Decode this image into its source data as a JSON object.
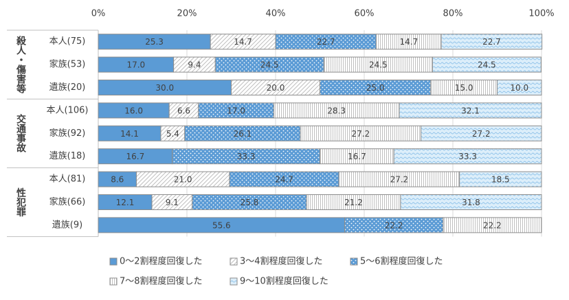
{
  "chart_data": {
    "type": "stacked-bar-horizontal",
    "groups": [
      {
        "name": "殺人・傷害等",
        "categories": [
          "本人(75)",
          "家族(53)",
          "遺族(20)"
        ]
      },
      {
        "name": "交通事故",
        "categories": [
          "本人(106)",
          "家族(92)",
          "遺族(18)"
        ]
      },
      {
        "name": "性犯罪",
        "categories": [
          "本人(81)",
          "家族(66)",
          "遺族(9)"
        ]
      }
    ],
    "xlim": [
      0,
      100
    ],
    "xticks": [
      {
        "value": 0,
        "label": "0%"
      },
      {
        "value": 20,
        "label": "20%"
      },
      {
        "value": 40,
        "label": "40%"
      },
      {
        "value": 60,
        "label": "60%"
      },
      {
        "value": 80,
        "label": "80%"
      },
      {
        "value": 100,
        "label": "100%"
      }
    ],
    "series": [
      {
        "name": "0～2割程度回復した",
        "color": "#5b9bd5",
        "pattern": "solid",
        "values": [
          25.3,
          17.0,
          30.0,
          16.0,
          14.1,
          16.7,
          8.6,
          12.1,
          55.6
        ],
        "value_labels": [
          "25.3",
          "17.0",
          "30.0",
          "16.0",
          "14.1",
          "16.7",
          "8.6",
          "12.1",
          "55.6"
        ]
      },
      {
        "name": "3～4割程度回復した",
        "color": "#bfbfbf",
        "pattern": "diagonal",
        "values": [
          14.7,
          9.4,
          20.0,
          6.6,
          5.4,
          null,
          21.0,
          9.1,
          null
        ],
        "value_labels": [
          "14.7",
          "9.4",
          "20.0",
          "6.6",
          "5.4",
          null,
          "21.0",
          "9.1",
          null
        ]
      },
      {
        "name": "5～6割程度回復した",
        "color": "#5b9bd5",
        "pattern": "dots",
        "values": [
          22.7,
          24.5,
          25.0,
          17.0,
          26.1,
          33.3,
          24.7,
          25.8,
          22.2
        ],
        "value_labels": [
          "22.7",
          "24.5",
          "25.0",
          "17.0",
          "26.1",
          "33.3",
          "24.7",
          "25.8",
          "22.2"
        ]
      },
      {
        "name": "7～8割程度回復した",
        "color": "#bfbfbf",
        "pattern": "vertical",
        "values": [
          14.7,
          24.5,
          15.0,
          28.3,
          27.2,
          16.7,
          27.2,
          21.2,
          22.2
        ],
        "value_labels": [
          "14.7",
          "24.5",
          "15.0",
          "28.3",
          "27.2",
          "16.7",
          "27.2",
          "21.2",
          "22.2"
        ]
      },
      {
        "name": "9～10割程度回復した",
        "color": "#8fc3ea",
        "pattern": "waves",
        "values": [
          22.7,
          24.5,
          10.0,
          32.1,
          27.2,
          33.3,
          18.5,
          31.8,
          null
        ],
        "value_labels": [
          "22.7",
          "24.5",
          "10.0",
          "32.1",
          "27.2",
          "33.3",
          "18.5",
          "31.8",
          null
        ]
      }
    ]
  }
}
